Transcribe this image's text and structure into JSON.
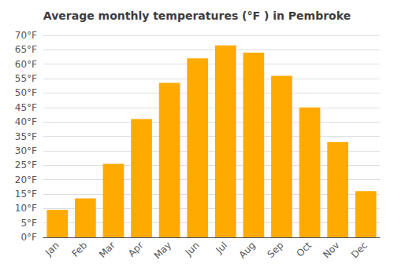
{
  "chart_data": {
    "type": "bar",
    "title": "Average monthly temperatures (°F ) in Pembroke",
    "categories": [
      "Jan",
      "Feb",
      "Mar",
      "Apr",
      "May",
      "Jun",
      "Jul",
      "Aug",
      "Sep",
      "Oct",
      "Nov",
      "Dec"
    ],
    "values": [
      9.5,
      13.5,
      25.5,
      41.0,
      53.5,
      62.0,
      66.5,
      64.0,
      56.0,
      45.0,
      33.0,
      16.0
    ],
    "color": "#FFAA00",
    "ylim": [
      0,
      70
    ],
    "yticks": [
      {
        "value": 0,
        "label": "0°F"
      },
      {
        "value": 5,
        "label": "5°F"
      },
      {
        "value": 10,
        "label": "10°F"
      },
      {
        "value": 15,
        "label": "15°F"
      },
      {
        "value": 20,
        "label": "20°F"
      },
      {
        "value": 25,
        "label": "25°F"
      },
      {
        "value": 30,
        "label": "30°F"
      },
      {
        "value": 35,
        "label": "35°F"
      },
      {
        "value": 40,
        "label": "40°F"
      },
      {
        "value": 45,
        "label": "45°F"
      },
      {
        "value": 50,
        "label": "50°F"
      },
      {
        "value": 55,
        "label": "55°F"
      },
      {
        "value": 60,
        "label": "60°F"
      },
      {
        "value": 65,
        "label": "65°F"
      },
      {
        "value": 70,
        "label": "70°F"
      }
    ],
    "grid": true
  }
}
